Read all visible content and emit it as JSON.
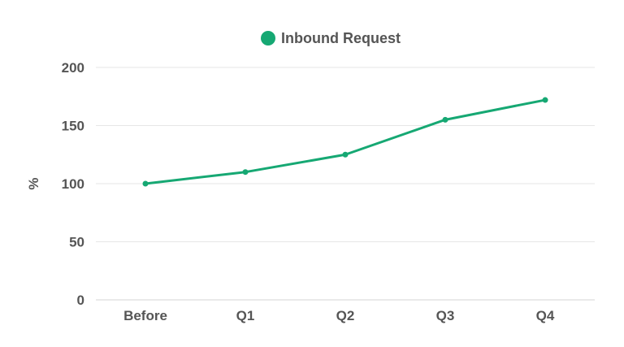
{
  "chart_data": {
    "type": "line",
    "categories": [
      "Before",
      "Q1",
      "Q2",
      "Q3",
      "Q4"
    ],
    "series": [
      {
        "name": "Inbound Request",
        "values": [
          100,
          110,
          125,
          155,
          172
        ],
        "color": "#16a873"
      }
    ],
    "ylabel": "%",
    "ylim": [
      0,
      200
    ],
    "yticks": [
      0,
      50,
      100,
      150,
      200
    ],
    "grid": true,
    "legend_position": "top-center"
  }
}
